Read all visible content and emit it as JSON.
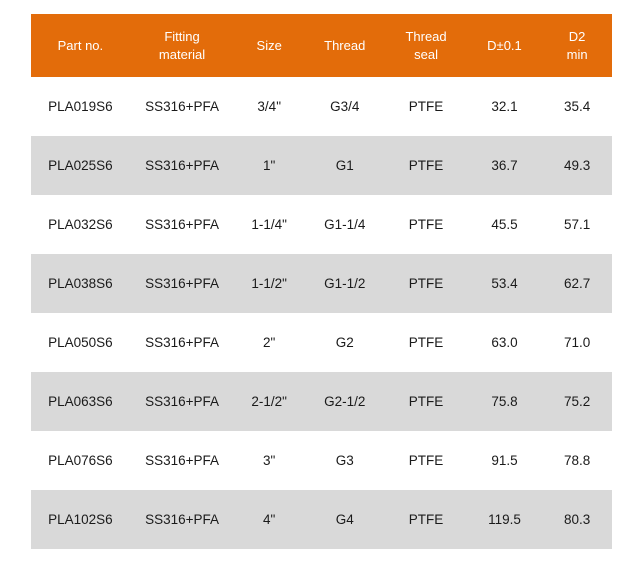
{
  "colors": {
    "header_bg": "#E36C0A",
    "header_text": "#FFFFFF",
    "row_alt_bg": "#D9D9D9",
    "row_bg": "#FFFFFF",
    "body_text": "#1A1A1A"
  },
  "table": {
    "headers": [
      "Part no.",
      "Fitting\nmaterial",
      "Size",
      "Thread",
      "Thread\nseal",
      "D±0.1",
      "D2\nmin"
    ],
    "rows": [
      [
        "PLA019S6",
        "SS316+PFA",
        "3/4\"",
        "G3/4",
        "PTFE",
        "32.1",
        "35.4"
      ],
      [
        "PLA025S6",
        "SS316+PFA",
        "1\"",
        "G1",
        "PTFE",
        "36.7",
        "49.3"
      ],
      [
        "PLA032S6",
        "SS316+PFA",
        "1-1/4\"",
        "G1-1/4",
        "PTFE",
        "45.5",
        "57.1"
      ],
      [
        "PLA038S6",
        "SS316+PFA",
        "1-1/2\"",
        "G1-1/2",
        "PTFE",
        "53.4",
        "62.7"
      ],
      [
        "PLA050S6",
        "SS316+PFA",
        "2\"",
        "G2",
        "PTFE",
        "63.0",
        "71.0"
      ],
      [
        "PLA063S6",
        "SS316+PFA",
        "2-1/2\"",
        "G2-1/2",
        "PTFE",
        "75.8",
        "75.2"
      ],
      [
        "PLA076S6",
        "SS316+PFA",
        "3\"",
        "G3",
        "PTFE",
        "91.5",
        "78.8"
      ],
      [
        "PLA102S6",
        "SS316+PFA",
        "4\"",
        "G4",
        "PTFE",
        "119.5",
        "80.3"
      ]
    ]
  }
}
